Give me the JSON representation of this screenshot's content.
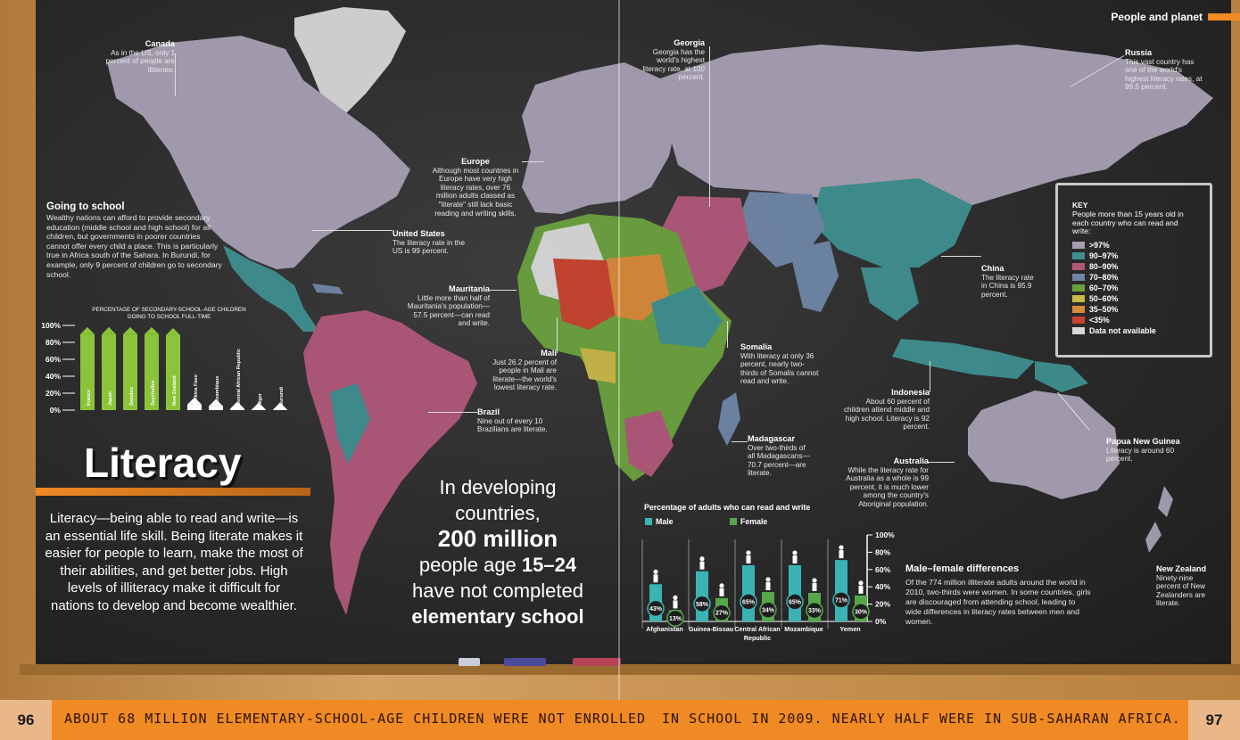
{
  "header": {
    "section": "People and planet"
  },
  "page_left": "96",
  "page_right": "97",
  "ticker": {
    "left": "ABOUT 68 MILLION ELEMENTARY-SCHOOL-AGE CHILDREN WERE NOT ENROLLED",
    "right": "IN SCHOOL IN 2009. NEARLY HALF WERE IN SUB-SAHARAN AFRICA."
  },
  "title": "Literacy",
  "intro": "Literacy—being able to read and write—is an essential life skill. Being literate makes it easier for people to learn, make the most of their abilities, and get better jobs. High levels of illiteracy make it difficult for nations to develop and become wealthier.",
  "stat": {
    "l1": "In developing",
    "l2": "countries,",
    "l3": "200 million",
    "l4a": "people age ",
    "l4b": "15–24",
    "l5": "have not completed",
    "l6": "elementary school"
  },
  "school": {
    "title": "Going to school",
    "text": "Wealthy nations can afford to provide secondary education (middle school and high school) for all children, but governments in poorer countries cannot offer every child a place. This is particularly true in Africa south of the Sahara. In Burundi, for example, only 9 percent of children go to secondary school."
  },
  "key": {
    "title": "KEY",
    "subtitle": "People more than 15 years old in each country who can read and write:",
    "items": [
      {
        "label": ">97%",
        "color": "#a69fb2"
      },
      {
        "label": "90–97%",
        "color": "#3f8f90"
      },
      {
        "label": "80–90%",
        "color": "#b0587a"
      },
      {
        "label": "70–80%",
        "color": "#6f86a6"
      },
      {
        "label": "60–70%",
        "color": "#6aa13e"
      },
      {
        "label": "50–60%",
        "color": "#c9b746"
      },
      {
        "label": "35–50%",
        "color": "#d88a3a"
      },
      {
        "label": "<35%",
        "color": "#c7442f"
      },
      {
        "label": "Data not available",
        "color": "#d8d8d8"
      }
    ]
  },
  "annotations": {
    "canada": {
      "title": "Canada",
      "text": "As in the US, only 1 percent of people are illiterate."
    },
    "georgia": {
      "title": "Georgia",
      "text": "Georgia has the world's highest literacy rate, at 100 percent."
    },
    "russia": {
      "title": "Russia",
      "text": "This vast country has one of the world's highest literacy rates, at 99.5 percent."
    },
    "europe": {
      "title": "Europe",
      "text": "Although most countries in Europe have very high literacy rates, over 76 million adults classed as \"literate\" still lack basic reading and writing skills."
    },
    "us": {
      "title": "United States",
      "text": "The literacy rate in the US is 99 percent."
    },
    "mauritania": {
      "title": "Mauritania",
      "text": "Little more than half of Mauritania's population—57.5 percent—can read and write."
    },
    "mali": {
      "title": "Mali",
      "text": "Just 26.2 percent of people in Mali are literate—the world's lowest literacy rate."
    },
    "brazil": {
      "title": "Brazil",
      "text": "Nine out of every 10 Brazilians are literate."
    },
    "somalia": {
      "title": "Somalia",
      "text": "With literacy at only 36 percent, nearly two-thirds of Somalis cannot read and write."
    },
    "madagascar": {
      "title": "Madagascar",
      "text": "Over two-thirds of all Madagascans—70.7 percent—are literate."
    },
    "china": {
      "title": "China",
      "text": "The literacy rate in China is 95.9 percent."
    },
    "indonesia": {
      "title": "Indonesia",
      "text": "About 60 percent of children attend middle and high school. Literacy is 92 percent."
    },
    "australia": {
      "title": "Australia",
      "text": "While the literacy rate for Australia as a whole is 99 percent, it is much lower among the country's Aboriginal population."
    },
    "png": {
      "title": "Papua New Guinea",
      "text": "Literacy is around 60 percent."
    },
    "nz": {
      "title": "New Zealand",
      "text": "Ninety-nine percent of New Zealanders are literate."
    }
  },
  "male_female": {
    "head": "Male–female differences",
    "text": "Of the 774 million illiterate adults around the world in 2010, two-thirds were women. In some countries, girls are discouraged from attending school, leading to wide differences in literacy rates between men and women."
  },
  "chart_data": [
    {
      "type": "bar",
      "title": "PERCENTAGE OF SECONDARY-SCHOOL-AGE CHILDREN GOING TO SCHOOL FULL-TIME",
      "categories": [
        "France",
        "Japan",
        "Sweden",
        "Seychelles",
        "New Zealand",
        "Burkina Faso",
        "Mozambique",
        "Central African Republic",
        "Niger",
        "Burundi"
      ],
      "values": [
        98,
        98,
        98,
        98,
        97,
        15,
        13,
        10,
        9,
        9
      ],
      "ylim": [
        0,
        100
      ],
      "yticks": [
        "0%",
        "20%",
        "40%",
        "60%",
        "80%",
        "100%"
      ],
      "colors": {
        "high": "#8bc43a",
        "low": "#ffffff"
      }
    },
    {
      "type": "bar",
      "title": "Percentage of adults who can read and write",
      "categories": [
        "Afghanistan",
        "Guinea-Bissau",
        "Central African Republic",
        "Mozambique",
        "Yemen"
      ],
      "series": [
        {
          "name": "Male",
          "color": "#3bb3b5",
          "values": [
            43,
            58,
            65,
            65,
            71
          ],
          "labels": [
            "43%",
            "58%",
            "65%",
            "65%",
            "71%"
          ]
        },
        {
          "name": "Female",
          "color": "#55a74a",
          "values": [
            13,
            27,
            34,
            33,
            30
          ],
          "labels": [
            "13%",
            "27%",
            "34%",
            "33%",
            "30%"
          ]
        }
      ],
      "ylim": [
        0,
        100
      ],
      "yticks": [
        "0%",
        "20%",
        "40%",
        "60%",
        "80%",
        "100%"
      ]
    }
  ]
}
